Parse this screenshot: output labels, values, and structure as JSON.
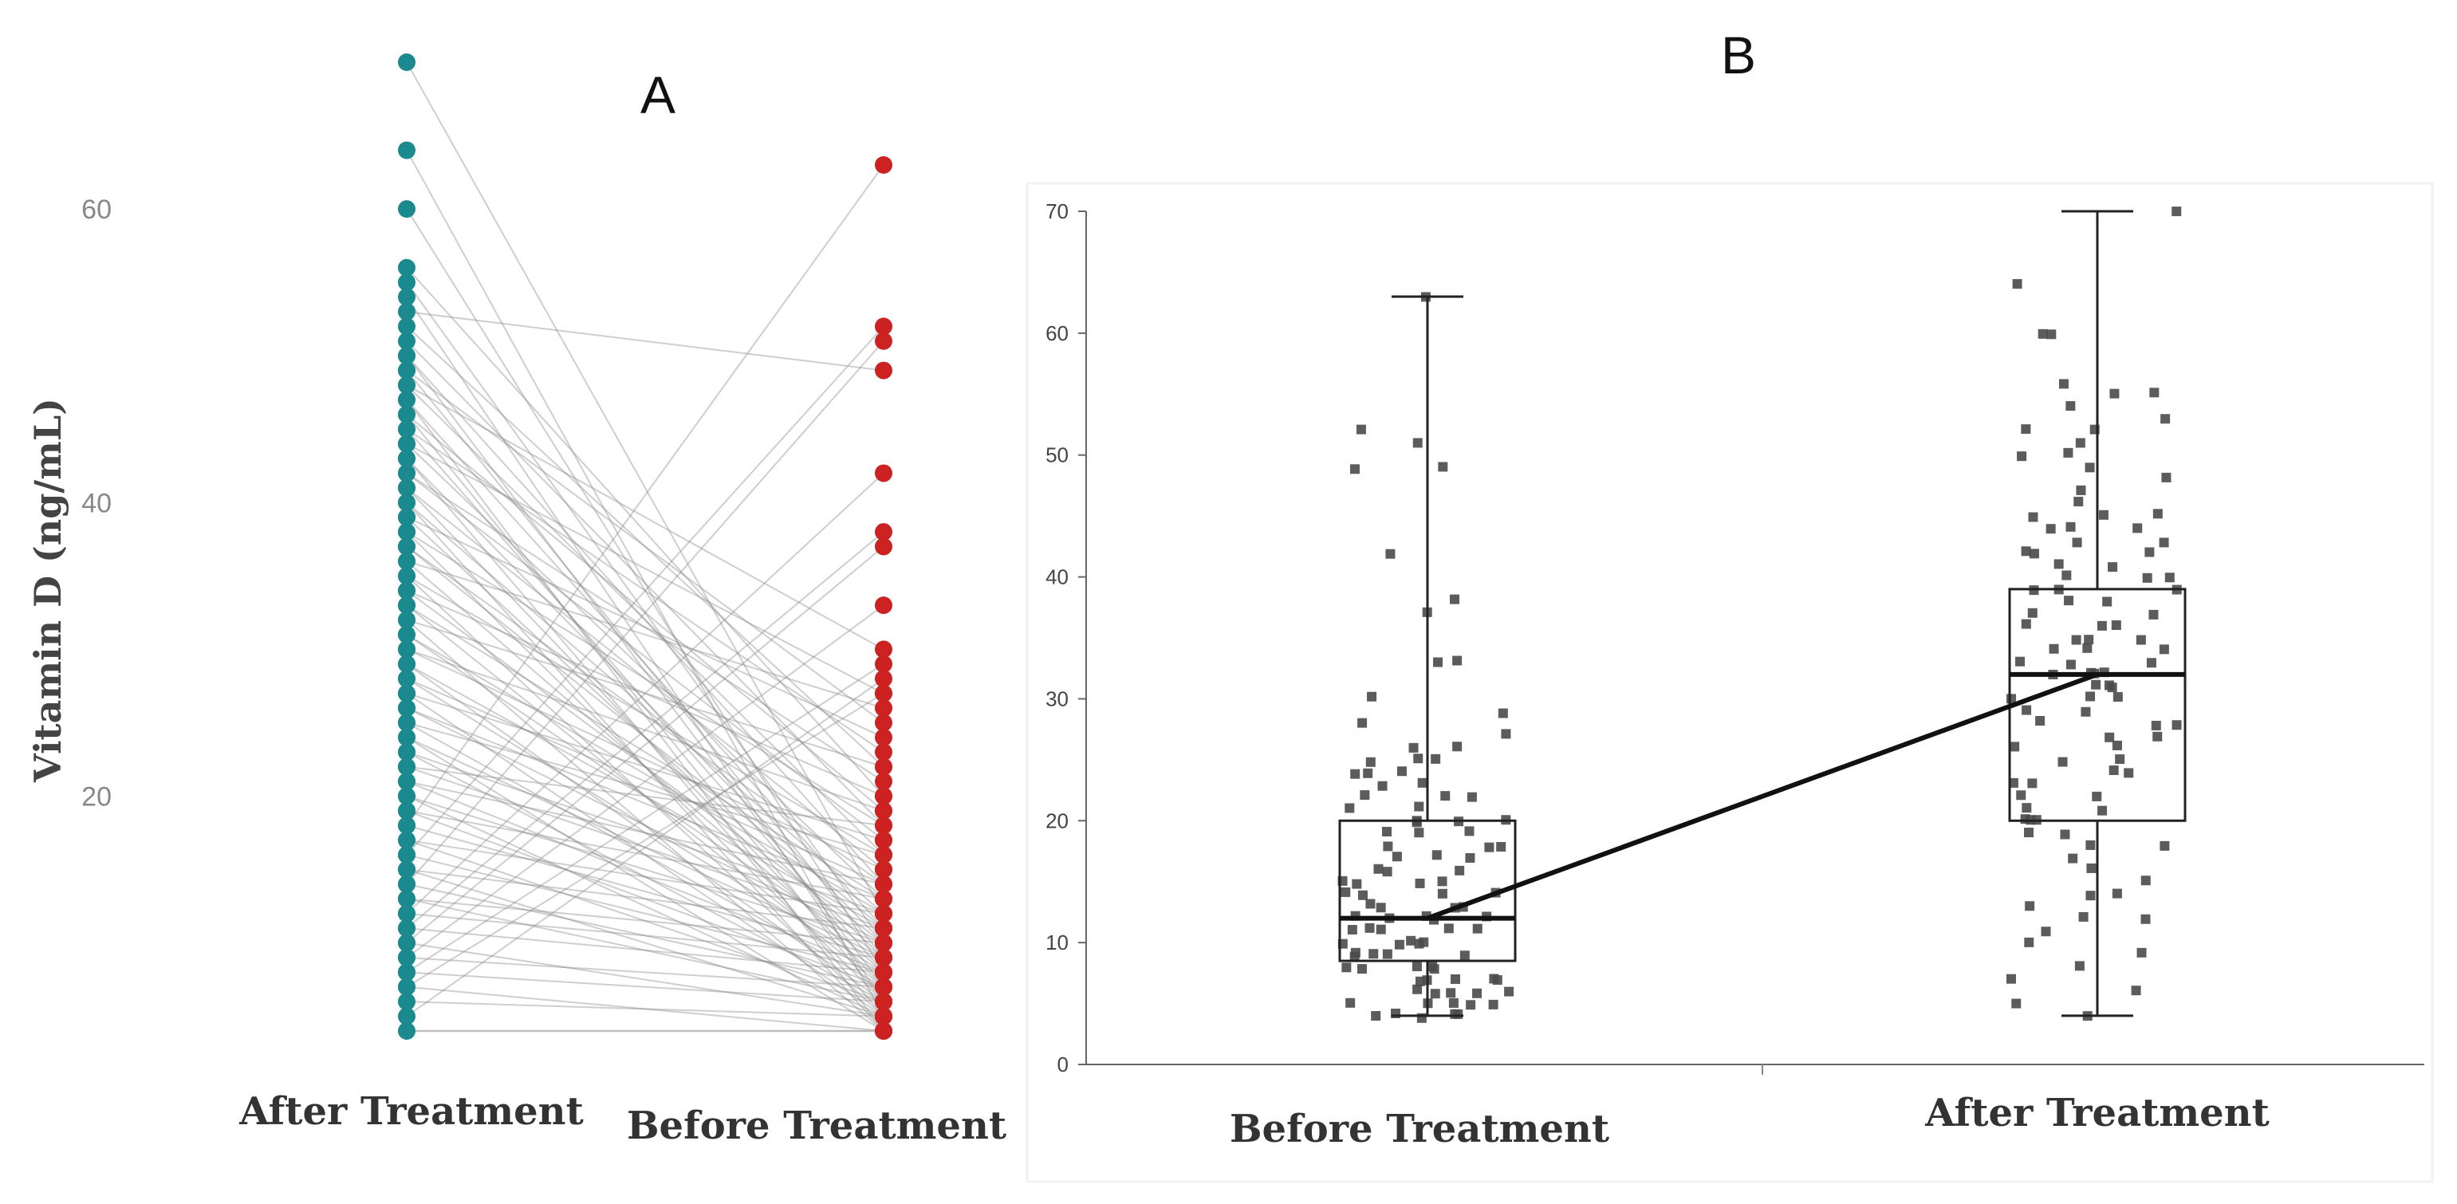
{
  "chart_data": [
    {
      "panel": "A",
      "type": "scatter",
      "subtype": "paired-slope",
      "title": "A",
      "ylabel": "Vitamin D (ng/mL)",
      "categories": [
        "After Treatment",
        "Before Treatment"
      ],
      "ylim": [
        4,
        70
      ],
      "yticks": [
        20,
        40,
        60
      ],
      "ytick_labels": [
        "20",
        "40",
        "60"
      ],
      "colors": {
        "after": "#1a8a8f",
        "before": "#cc2222",
        "line": "#8a8a8a"
      },
      "series": [
        {
          "name": "After Treatment",
          "values": [
            70,
            64,
            60,
            56,
            55,
            54,
            53,
            52,
            51,
            50,
            50,
            49,
            49,
            48,
            48,
            47,
            47,
            46,
            46,
            45,
            45,
            44,
            44,
            43,
            43,
            42,
            42,
            41,
            41,
            40,
            40,
            39,
            39,
            38,
            38,
            37,
            37,
            36,
            36,
            35,
            35,
            34,
            34,
            33,
            33,
            32,
            32,
            31,
            31,
            30,
            30,
            29,
            29,
            28,
            28,
            27,
            27,
            26,
            26,
            25,
            25,
            24,
            24,
            23,
            23,
            22,
            22,
            21,
            21,
            20,
            20,
            19,
            19,
            18,
            18,
            17,
            17,
            16,
            16,
            15,
            15,
            14,
            14,
            13,
            13,
            12,
            12,
            11,
            11,
            10,
            10,
            9,
            9,
            8,
            8,
            7,
            7,
            6,
            5,
            4
          ]
        },
        {
          "name": "Before Treatment",
          "values": [
            12,
            5,
            8,
            20,
            10,
            6,
            49,
            22,
            18,
            7,
            14,
            25,
            9,
            30,
            16,
            4,
            11,
            6,
            19,
            23,
            8,
            13,
            27,
            5,
            10,
            17,
            21,
            7,
            15,
            12,
            4,
            9,
            24,
            18,
            6,
            11,
            14,
            26,
            8,
            16,
            5,
            20,
            10,
            13,
            7,
            22,
            4,
            12,
            9,
            15,
            19,
            6,
            11,
            8,
            14,
            17,
            5,
            10,
            13,
            7,
            16,
            4,
            9,
            12,
            6,
            18,
            11,
            8,
            14,
            5,
            10,
            7,
            13,
            63,
            9,
            6,
            12,
            8,
            52,
            5,
            11,
            7,
            51,
            10,
            6,
            42,
            9,
            38,
            8,
            37,
            5,
            33,
            7,
            29,
            6,
            27,
            4,
            5,
            28,
            4
          ]
        }
      ]
    },
    {
      "panel": "B",
      "type": "box",
      "title": "B",
      "categories": [
        "Before Treatment",
        "After Treatment"
      ],
      "ylim": [
        0,
        70
      ],
      "yticks": [
        0,
        10,
        20,
        30,
        40,
        50,
        60,
        70
      ],
      "ytick_labels": [
        "0",
        "10",
        "20",
        "30",
        "40",
        "50",
        "60",
        "70"
      ],
      "grid": false,
      "boxes": [
        {
          "name": "Before Treatment",
          "min": 4,
          "q1": 8.5,
          "median": 12,
          "q3": 20,
          "max": 63
        },
        {
          "name": "After Treatment",
          "min": 4,
          "q1": 20,
          "median": 32,
          "q3": 39,
          "max": 70
        }
      ],
      "mean_line": [
        12,
        32
      ],
      "points": [
        {
          "name": "Before Treatment",
          "values": [
            63,
            52,
            51,
            49,
            49,
            42,
            38,
            37,
            33,
            33,
            30,
            29,
            28,
            27,
            26,
            26,
            25,
            25,
            25,
            24,
            24,
            24,
            23,
            23,
            22,
            22,
            22,
            21,
            21,
            20,
            20,
            20,
            20,
            19,
            19,
            19,
            18,
            18,
            18,
            17,
            17,
            17,
            16,
            16,
            16,
            15,
            15,
            15,
            15,
            14,
            14,
            14,
            14,
            13,
            13,
            13,
            13,
            12,
            12,
            12,
            12,
            12,
            11,
            11,
            11,
            11,
            11,
            10,
            10,
            10,
            10,
            10,
            9,
            9,
            9,
            9,
            9,
            8,
            8,
            8,
            8,
            8,
            7,
            7,
            7,
            7,
            7,
            6,
            6,
            6,
            6,
            6,
            5,
            5,
            5,
            5,
            5,
            4,
            4,
            4,
            4,
            4
          ]
        },
        {
          "name": "After Treatment",
          "values": [
            70,
            64,
            60,
            60,
            56,
            55,
            55,
            54,
            53,
            52,
            52,
            51,
            50,
            50,
            49,
            48,
            47,
            46,
            45,
            45,
            45,
            44,
            44,
            44,
            43,
            43,
            42,
            42,
            42,
            41,
            41,
            40,
            40,
            40,
            39,
            39,
            39,
            38,
            38,
            37,
            37,
            36,
            36,
            36,
            35,
            35,
            35,
            34,
            34,
            34,
            33,
            33,
            33,
            32,
            32,
            32,
            32,
            31,
            31,
            31,
            30,
            30,
            30,
            29,
            29,
            28,
            28,
            28,
            27,
            27,
            26,
            26,
            25,
            25,
            24,
            24,
            23,
            23,
            22,
            22,
            21,
            21,
            20,
            20,
            20,
            19,
            19,
            18,
            18,
            17,
            16,
            15,
            14,
            14,
            13,
            12,
            12,
            11,
            10,
            9,
            8,
            7,
            6,
            5,
            4
          ]
        }
      ]
    }
  ]
}
